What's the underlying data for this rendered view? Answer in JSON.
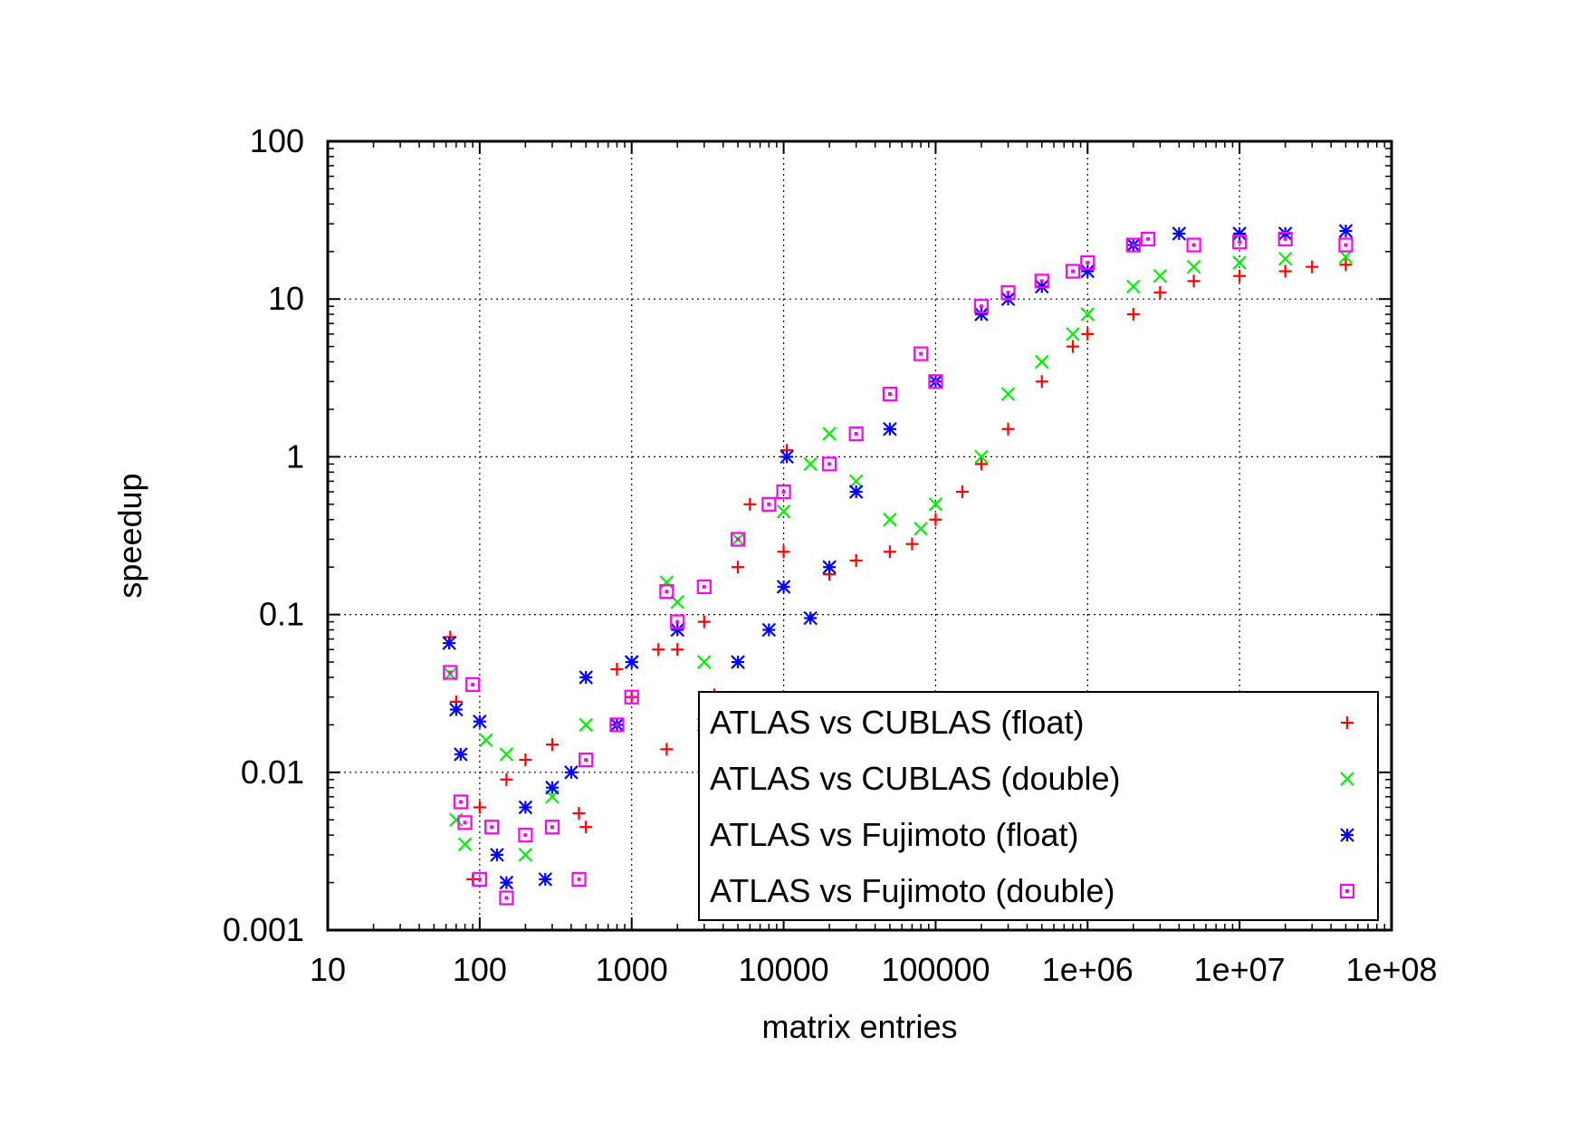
{
  "chart_data": {
    "type": "scatter",
    "xlabel": "matrix entries",
    "ylabel": "speedup",
    "x_scale": "log",
    "y_scale": "log",
    "xlim": [
      10,
      100000000
    ],
    "ylim": [
      0.001,
      100
    ],
    "x_ticks": [
      "10",
      "100",
      "1000",
      "10000",
      "100000",
      "1e+06",
      "1e+07",
      "1e+08"
    ],
    "y_ticks": [
      "0.001",
      "0.01",
      "0.1",
      "1",
      "10",
      "100"
    ],
    "grid": true,
    "legend_position": "bottom-right",
    "series": [
      {
        "name": "ATLAS vs CUBLAS (float)",
        "marker": "plus",
        "color": "#ff0000",
        "points": [
          [
            64,
            0.072
          ],
          [
            70,
            0.028
          ],
          [
            90,
            0.0021
          ],
          [
            100,
            0.006
          ],
          [
            150,
            0.009
          ],
          [
            200,
            0.012
          ],
          [
            300,
            0.015
          ],
          [
            450,
            0.0055
          ],
          [
            500,
            0.0045
          ],
          [
            800,
            0.045
          ],
          [
            1000,
            0.03
          ],
          [
            1500,
            0.06
          ],
          [
            1700,
            0.014
          ],
          [
            2000,
            0.06
          ],
          [
            3000,
            0.09
          ],
          [
            3500,
            0.031
          ],
          [
            5000,
            0.2
          ],
          [
            6000,
            0.5
          ],
          [
            10000,
            0.25
          ],
          [
            10500,
            1.1
          ],
          [
            20000,
            0.18
          ],
          [
            30000,
            0.22
          ],
          [
            50000,
            0.25
          ],
          [
            70000,
            0.28
          ],
          [
            100000,
            0.4
          ],
          [
            150000,
            0.6
          ],
          [
            200000,
            0.9
          ],
          [
            300000,
            1.5
          ],
          [
            500000,
            3
          ],
          [
            800000,
            5
          ],
          [
            1000000,
            6
          ],
          [
            2000000,
            8
          ],
          [
            3000000,
            11
          ],
          [
            5000000,
            13
          ],
          [
            10000000,
            14
          ],
          [
            20000000,
            15
          ],
          [
            30000000,
            16
          ],
          [
            50000000,
            16.5
          ]
        ]
      },
      {
        "name": "ATLAS vs CUBLAS (double)",
        "marker": "cross",
        "color": "#00ee00",
        "points": [
          [
            64,
            0.042
          ],
          [
            70,
            0.005
          ],
          [
            80,
            0.0035
          ],
          [
            110,
            0.016
          ],
          [
            150,
            0.013
          ],
          [
            200,
            0.003
          ],
          [
            300,
            0.007
          ],
          [
            500,
            0.02
          ],
          [
            1000,
            0.05
          ],
          [
            1700,
            0.16
          ],
          [
            2000,
            0.12
          ],
          [
            3000,
            0.05
          ],
          [
            5000,
            0.3
          ],
          [
            10000,
            0.45
          ],
          [
            15000,
            0.9
          ],
          [
            20000,
            1.4
          ],
          [
            30000,
            0.7
          ],
          [
            50000,
            0.4
          ],
          [
            80000,
            0.35
          ],
          [
            100000,
            0.5
          ],
          [
            200000,
            1.0
          ],
          [
            300000,
            2.5
          ],
          [
            500000,
            4
          ],
          [
            800000,
            6
          ],
          [
            1000000,
            8
          ],
          [
            2000000,
            12
          ],
          [
            3000000,
            14
          ],
          [
            5000000,
            16
          ],
          [
            10000000,
            17
          ],
          [
            20000000,
            18
          ],
          [
            50000000,
            18.5
          ]
        ]
      },
      {
        "name": "ATLAS vs Fujimoto (float)",
        "marker": "star",
        "color": "#0000ff",
        "points": [
          [
            63,
            0.066
          ],
          [
            70,
            0.025
          ],
          [
            75,
            0.013
          ],
          [
            100,
            0.021
          ],
          [
            130,
            0.003
          ],
          [
            150,
            0.002
          ],
          [
            200,
            0.006
          ],
          [
            270,
            0.0021
          ],
          [
            300,
            0.008
          ],
          [
            400,
            0.01
          ],
          [
            500,
            0.04
          ],
          [
            800,
            0.02
          ],
          [
            1000,
            0.05
          ],
          [
            2000,
            0.08
          ],
          [
            3000,
            0.02
          ],
          [
            5000,
            0.05
          ],
          [
            8000,
            0.08
          ],
          [
            10000,
            0.15
          ],
          [
            10500,
            1.0
          ],
          [
            15000,
            0.095
          ],
          [
            20000,
            0.2
          ],
          [
            30000,
            0.6
          ],
          [
            50000,
            1.5
          ],
          [
            100000,
            3
          ],
          [
            200000,
            8
          ],
          [
            300000,
            10
          ],
          [
            500000,
            12
          ],
          [
            1000000,
            15
          ],
          [
            2000000,
            22
          ],
          [
            4000000,
            26
          ],
          [
            10000000,
            26
          ],
          [
            20000000,
            26
          ],
          [
            50000000,
            27
          ]
        ]
      },
      {
        "name": "ATLAS vs Fujimoto (double)",
        "marker": "square",
        "color": "#ff00ff",
        "points": [
          [
            64,
            0.043
          ],
          [
            75,
            0.0065
          ],
          [
            80,
            0.0048
          ],
          [
            90,
            0.036
          ],
          [
            100,
            0.0021
          ],
          [
            120,
            0.0045
          ],
          [
            150,
            0.0016
          ],
          [
            200,
            0.004
          ],
          [
            300,
            0.0045
          ],
          [
            450,
            0.0021
          ],
          [
            500,
            0.012
          ],
          [
            800,
            0.02
          ],
          [
            1000,
            0.03
          ],
          [
            1700,
            0.14
          ],
          [
            2000,
            0.09
          ],
          [
            3000,
            0.15
          ],
          [
            5000,
            0.3
          ],
          [
            8000,
            0.5
          ],
          [
            10000,
            0.6
          ],
          [
            20000,
            0.9
          ],
          [
            30000,
            1.4
          ],
          [
            50000,
            2.5
          ],
          [
            80000,
            4.5
          ],
          [
            100000,
            3
          ],
          [
            200000,
            9
          ],
          [
            300000,
            11
          ],
          [
            500000,
            13
          ],
          [
            800000,
            15
          ],
          [
            1000000,
            17
          ],
          [
            2000000,
            22
          ],
          [
            2500000,
            24
          ],
          [
            5000000,
            22
          ],
          [
            10000000,
            23
          ],
          [
            20000000,
            24
          ],
          [
            50000000,
            22
          ]
        ]
      }
    ]
  }
}
